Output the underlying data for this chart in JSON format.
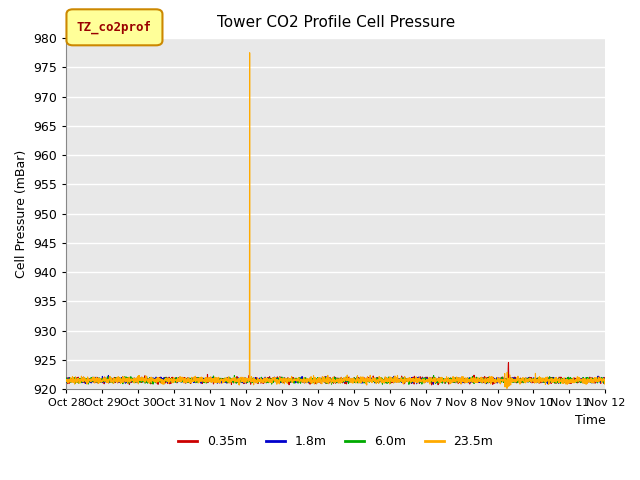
{
  "title": "Tower CO2 Profile Cell Pressure",
  "ylabel": "Cell Pressure (mBar)",
  "xlabel": "Time",
  "ylim": [
    920,
    980
  ],
  "yticks": [
    920,
    925,
    930,
    935,
    940,
    945,
    950,
    955,
    960,
    965,
    970,
    975,
    980
  ],
  "background_color": "#e8e8e8",
  "fig_color": "#ffffff",
  "series": [
    {
      "label": "0.35m",
      "color": "#cc0000"
    },
    {
      "label": "1.8m",
      "color": "#0000cc"
    },
    {
      "label": "6.0m",
      "color": "#00aa00"
    },
    {
      "label": "23.5m",
      "color": "#ffaa00"
    }
  ],
  "legend_label": "TZ_co2prof",
  "legend_bg": "#ffff99",
  "legend_border": "#cc8800",
  "base_value": 921.5,
  "spike_day": 5.1,
  "spike_value": 977.5,
  "xtick_labels": [
    "Oct 28",
    "Oct 29",
    "Oct 30",
    "Oct 31",
    "Nov 1",
    "Nov 2",
    "Nov 3",
    "Nov 4",
    "Nov 5",
    "Nov 6",
    "Nov 7",
    "Nov 8",
    "Nov 9",
    "Nov 10",
    "Nov 11",
    "Nov 12"
  ],
  "xlim": [
    0,
    15
  ],
  "grid_color": "#ffffff",
  "grid_linewidth": 1.0
}
